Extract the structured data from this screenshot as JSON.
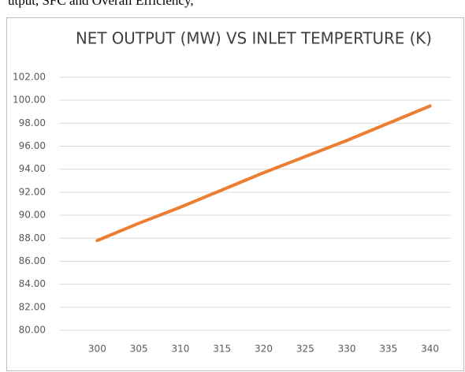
{
  "caption": "utput, SFC and Overall Efficiency,",
  "chart_data": {
    "type": "line",
    "title": "NET OUTPUT (MW) VS INLET TEMPERTURE (K)",
    "x": [
      300,
      305,
      310,
      315,
      320,
      325,
      330,
      335,
      340
    ],
    "series": [
      {
        "name": "Net Output",
        "color": "#ed7d31",
        "values": [
          87.8,
          89.3,
          90.7,
          92.2,
          93.7,
          95.1,
          96.5,
          98.0,
          99.5
        ]
      }
    ],
    "xlim": [
      297.5,
      342.5
    ],
    "xticks": [
      300,
      305,
      310,
      315,
      320,
      325,
      330,
      335,
      340
    ],
    "ylim": [
      80,
      102
    ],
    "yticks": [
      {
        "value": 80,
        "label": "80.00"
      },
      {
        "value": 82,
        "label": "82.00"
      },
      {
        "value": 84,
        "label": "84.00"
      },
      {
        "value": 86,
        "label": "86.00"
      },
      {
        "value": 88,
        "label": "88.00"
      },
      {
        "value": 90,
        "label": "90.00"
      },
      {
        "value": 92,
        "label": "92.00"
      },
      {
        "value": 94,
        "label": "94.00"
      },
      {
        "value": 96,
        "label": "96.00"
      },
      {
        "value": 98,
        "label": "98.00"
      },
      {
        "value": 100,
        "label": "100.00"
      },
      {
        "value": 102,
        "label": "102.00"
      }
    ],
    "grid": true
  }
}
